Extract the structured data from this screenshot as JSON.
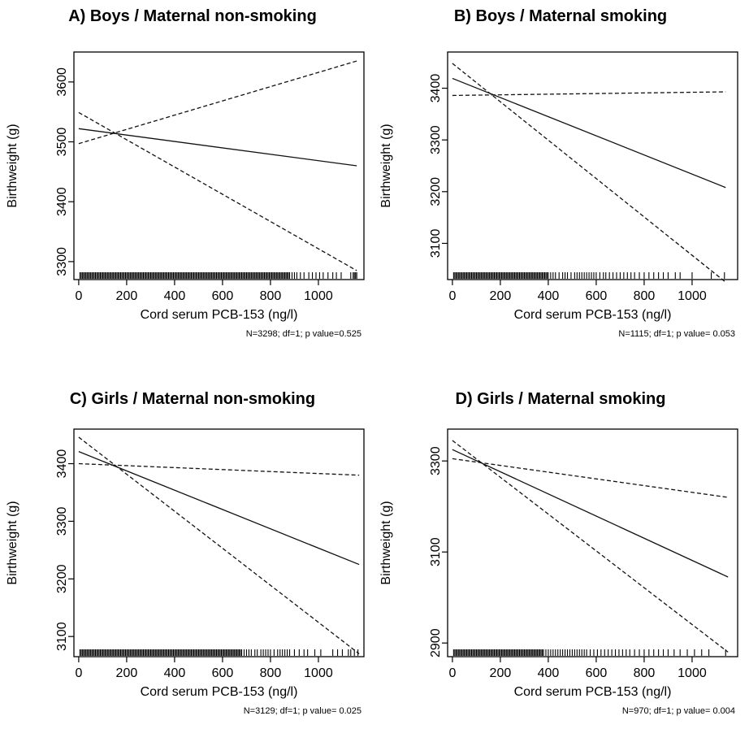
{
  "chart_data": [
    {
      "type": "line",
      "title": "A) Boys / Maternal non-smoking",
      "xlabel": "Cord serum PCB-153 (ng/l)",
      "ylabel": "Birthweight (g)",
      "note": "N=3298; df=1; p value=0.525",
      "xlim": [
        -20,
        1190
      ],
      "ylim": [
        3270,
        3650
      ],
      "xticks": [
        0,
        200,
        400,
        600,
        800,
        1000
      ],
      "yticks": [
        3300,
        3400,
        3500,
        3600
      ],
      "series": [
        {
          "style": "solid",
          "x": [
            0,
            1160
          ],
          "y": [
            3522,
            3460
          ]
        },
        {
          "style": "dashed",
          "x": [
            0,
            1160
          ],
          "y": [
            3497,
            3635
          ]
        },
        {
          "style": "dashed",
          "x": [
            0,
            1160
          ],
          "y": [
            3549,
            3285
          ]
        }
      ],
      "rug": [
        5,
        10,
        15,
        20,
        25,
        30,
        35,
        40,
        45,
        50,
        55,
        60,
        65,
        70,
        75,
        80,
        85,
        90,
        95,
        100,
        105,
        110,
        115,
        120,
        125,
        130,
        135,
        140,
        145,
        150,
        155,
        160,
        165,
        170,
        175,
        180,
        185,
        190,
        195,
        200,
        205,
        210,
        215,
        220,
        225,
        230,
        235,
        240,
        245,
        250,
        255,
        260,
        265,
        270,
        275,
        280,
        285,
        290,
        295,
        300,
        305,
        310,
        315,
        320,
        325,
        330,
        335,
        340,
        345,
        350,
        355,
        360,
        365,
        370,
        375,
        380,
        385,
        390,
        395,
        400,
        405,
        410,
        415,
        420,
        425,
        430,
        435,
        440,
        445,
        450,
        455,
        460,
        465,
        470,
        475,
        480,
        485,
        490,
        495,
        500,
        505,
        510,
        515,
        520,
        525,
        530,
        535,
        540,
        545,
        550,
        555,
        560,
        565,
        570,
        575,
        580,
        585,
        590,
        595,
        600,
        605,
        610,
        615,
        620,
        625,
        630,
        635,
        640,
        645,
        650,
        655,
        660,
        665,
        670,
        675,
        680,
        685,
        690,
        695,
        700,
        705,
        710,
        715,
        720,
        725,
        730,
        735,
        740,
        745,
        750,
        755,
        760,
        765,
        770,
        775,
        780,
        785,
        790,
        795,
        800,
        805,
        810,
        815,
        820,
        825,
        830,
        835,
        840,
        845,
        850,
        855,
        860,
        865,
        870,
        875,
        880,
        890,
        900,
        910,
        925,
        940,
        960,
        975,
        990,
        1005,
        1020,
        1040,
        1060,
        1075,
        1095,
        1135,
        1145,
        1150,
        1155,
        1160
      ]
    },
    {
      "type": "line",
      "title": "B) Boys / Maternal smoking",
      "xlabel": "Cord serum PCB-153 (ng/l)",
      "ylabel": "Birthweight (g)",
      "note": "N=1115; df=1; p value= 0.053",
      "xlim": [
        -20,
        1190
      ],
      "ylim": [
        3030,
        3470
      ],
      "xticks": [
        0,
        200,
        400,
        600,
        800,
        1000
      ],
      "yticks": [
        3100,
        3200,
        3300,
        3400
      ],
      "series": [
        {
          "style": "solid",
          "x": [
            0,
            1140
          ],
          "y": [
            3419,
            3208
          ]
        },
        {
          "style": "dashed",
          "x": [
            0,
            1140
          ],
          "y": [
            3386,
            3393
          ]
        },
        {
          "style": "dashed",
          "x": [
            0,
            1140
          ],
          "y": [
            3448,
            3025
          ]
        }
      ],
      "rug": [
        5,
        10,
        15,
        20,
        25,
        30,
        35,
        40,
        45,
        50,
        55,
        60,
        65,
        70,
        75,
        80,
        85,
        90,
        95,
        100,
        105,
        110,
        115,
        120,
        125,
        130,
        135,
        140,
        145,
        150,
        155,
        160,
        165,
        170,
        175,
        180,
        185,
        190,
        195,
        200,
        205,
        210,
        215,
        220,
        225,
        230,
        235,
        240,
        245,
        250,
        255,
        260,
        265,
        270,
        275,
        280,
        285,
        290,
        295,
        300,
        305,
        310,
        315,
        320,
        325,
        330,
        335,
        340,
        345,
        350,
        355,
        360,
        365,
        370,
        375,
        380,
        385,
        390,
        395,
        400,
        410,
        420,
        430,
        445,
        460,
        470,
        480,
        495,
        510,
        520,
        530,
        540,
        550,
        560,
        570,
        580,
        590,
        600,
        615,
        630,
        640,
        655,
        670,
        685,
        700,
        715,
        730,
        745,
        760,
        780,
        800,
        820,
        840,
        860,
        880,
        900,
        930,
        950,
        1000,
        1080,
        1135
      ]
    },
    {
      "type": "line",
      "title": "C) Girls / Maternal non-smoking",
      "xlabel": "Cord serum PCB-153 (ng/l)",
      "ylabel": "Birthweight (g)",
      "note": "N=3129; df=1; p value= 0.025",
      "xlim": [
        -20,
        1190
      ],
      "ylim": [
        3065,
        3460
      ],
      "xticks": [
        0,
        200,
        400,
        600,
        800,
        1000
      ],
      "yticks": [
        3100,
        3200,
        3300,
        3400
      ],
      "series": [
        {
          "style": "solid",
          "x": [
            0,
            1170
          ],
          "y": [
            3421,
            3225
          ]
        },
        {
          "style": "dashed",
          "x": [
            0,
            1170
          ],
          "y": [
            3400,
            3380
          ]
        },
        {
          "style": "dashed",
          "x": [
            0,
            1170
          ],
          "y": [
            3446,
            3070
          ]
        }
      ],
      "rug": [
        5,
        10,
        15,
        20,
        25,
        30,
        35,
        40,
        45,
        50,
        55,
        60,
        65,
        70,
        75,
        80,
        85,
        90,
        95,
        100,
        105,
        110,
        115,
        120,
        125,
        130,
        135,
        140,
        145,
        150,
        155,
        160,
        165,
        170,
        175,
        180,
        185,
        190,
        195,
        200,
        205,
        210,
        215,
        220,
        225,
        230,
        235,
        240,
        245,
        250,
        255,
        260,
        265,
        270,
        275,
        280,
        285,
        290,
        295,
        300,
        305,
        310,
        315,
        320,
        325,
        330,
        335,
        340,
        345,
        350,
        355,
        360,
        365,
        370,
        375,
        380,
        385,
        390,
        395,
        400,
        405,
        410,
        415,
        420,
        425,
        430,
        435,
        440,
        445,
        450,
        455,
        460,
        465,
        470,
        475,
        480,
        485,
        490,
        495,
        500,
        505,
        510,
        515,
        520,
        525,
        530,
        535,
        540,
        545,
        550,
        555,
        560,
        565,
        570,
        575,
        580,
        585,
        590,
        595,
        600,
        605,
        610,
        615,
        620,
        625,
        630,
        635,
        640,
        645,
        650,
        655,
        660,
        665,
        670,
        675,
        680,
        690,
        700,
        710,
        720,
        735,
        745,
        760,
        770,
        780,
        790,
        800,
        815,
        830,
        840,
        850,
        860,
        870,
        880,
        900,
        920,
        940,
        955,
        985,
        1010,
        1060,
        1080,
        1100,
        1125,
        1135,
        1150,
        1165
      ]
    },
    {
      "type": "line",
      "title": "D) Girls / Maternal smoking",
      "xlabel": "Cord serum PCB-153 (ng/l)",
      "ylabel": "Birthweight (g)",
      "note": "N=970; df=1; p value= 0.004",
      "xlim": [
        -20,
        1190
      ],
      "ylim": [
        2870,
        3370
      ],
      "xticks": [
        0,
        200,
        400,
        600,
        800,
        1000
      ],
      "yticks": [
        2900,
        3100,
        3300
      ],
      "series": [
        {
          "style": "solid",
          "x": [
            0,
            1150
          ],
          "y": [
            3325,
            3045
          ]
        },
        {
          "style": "dashed",
          "x": [
            0,
            1150
          ],
          "y": [
            3305,
            3220
          ]
        },
        {
          "style": "dashed",
          "x": [
            0,
            1150
          ],
          "y": [
            3345,
            2880
          ]
        }
      ],
      "rug": [
        5,
        10,
        15,
        20,
        25,
        30,
        35,
        40,
        45,
        50,
        55,
        60,
        65,
        70,
        75,
        80,
        85,
        90,
        95,
        100,
        105,
        110,
        115,
        120,
        125,
        130,
        135,
        140,
        145,
        150,
        155,
        160,
        165,
        170,
        175,
        180,
        185,
        190,
        195,
        200,
        205,
        210,
        215,
        220,
        225,
        230,
        235,
        240,
        245,
        250,
        255,
        260,
        265,
        270,
        275,
        280,
        285,
        290,
        295,
        300,
        305,
        310,
        315,
        320,
        325,
        330,
        335,
        340,
        345,
        350,
        355,
        360,
        365,
        370,
        375,
        380,
        390,
        400,
        410,
        420,
        430,
        440,
        450,
        460,
        470,
        480,
        490,
        500,
        510,
        520,
        530,
        540,
        550,
        560,
        575,
        590,
        605,
        620,
        635,
        650,
        665,
        680,
        695,
        710,
        725,
        740,
        760,
        780,
        800,
        820,
        840,
        860,
        880,
        900,
        925,
        950,
        980,
        1010,
        1040,
        1070,
        1140
      ]
    }
  ]
}
